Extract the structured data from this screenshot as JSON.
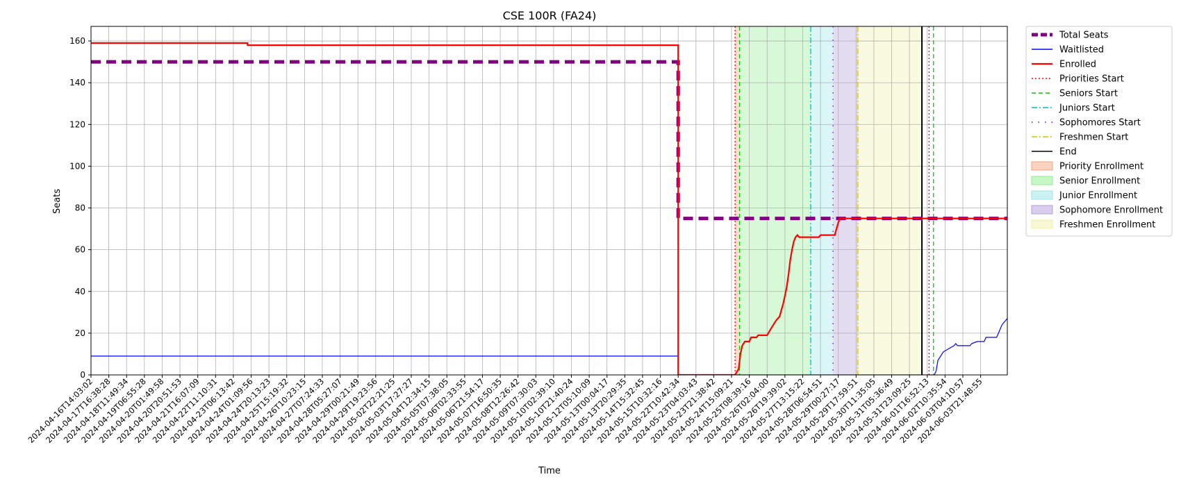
{
  "chart_data": {
    "type": "line",
    "title": "CSE 100R (FA24)",
    "xlabel": "Time",
    "ylabel": "Seats",
    "ylim": [
      0,
      167
    ],
    "y_ticks": [
      0,
      20,
      40,
      60,
      80,
      100,
      120,
      140,
      160
    ],
    "grid": true,
    "legend_position": "outside-right",
    "x_tick_labels": [
      "2024-04-16T14:03:02",
      "2024-04-17T16:38:28",
      "2024-04-18T11:49:34",
      "2024-04-19T06:55:28",
      "2024-04-20T01:49:58",
      "2024-04-20T20:51:53",
      "2024-04-21T16:07:09",
      "2024-04-22T11:10:31",
      "2024-04-23T06:13:42",
      "2024-04-24T01:09:56",
      "2024-04-24T20:13:23",
      "2024-04-25T15:19:32",
      "2024-04-26T10:23:15",
      "2024-04-27T07:24:33",
      "2024-04-28T05:27:07",
      "2024-04-29T00:21:49",
      "2024-04-29T19:23:56",
      "2024-05-02T22:21:25",
      "2024-05-03T17:27:27",
      "2024-05-04T12:34:15",
      "2024-05-05T07:38:05",
      "2024-05-06T02:33:55",
      "2024-05-06T21:54:17",
      "2024-05-07T16:50:35",
      "2024-05-08T12:26:42",
      "2024-05-09T07:30:03",
      "2024-05-10T02:39:10",
      "2024-05-10T21:40:24",
      "2024-05-12T05:10:09",
      "2024-05-13T00:04:17",
      "2024-05-13T20:29:35",
      "2024-05-14T15:32:45",
      "2024-05-15T10:32:16",
      "2024-05-22T10:42:34",
      "2024-05-23T04:03:43",
      "2024-05-23T21:38:42",
      "2024-05-24T15:09:21",
      "2024-05-25T08:39:16",
      "2024-05-26T02:04:00",
      "2024-05-26T19:39:02",
      "2024-05-27T13:15:22",
      "2024-05-28T06:54:51",
      "2024-05-29T00:27:17",
      "2024-05-29T17:59:51",
      "2024-05-30T11:35:05",
      "2024-05-31T05:36:49",
      "2024-05-31T23:09:25",
      "2024-06-01T16:52:13",
      "2024-06-02T10:35:54",
      "2024-06-03T04:10:57",
      "2024-06-03T21:48:55"
    ],
    "x_range": [
      0,
      51.5
    ],
    "series": [
      {
        "name": "Total Seats",
        "color": "#800080",
        "style": "dashed",
        "points": [
          [
            0,
            150
          ],
          [
            33,
            150
          ],
          [
            33,
            75
          ],
          [
            51.5,
            75
          ]
        ]
      },
      {
        "name": "Waitlisted",
        "color": "#0000ff",
        "style": "solid",
        "points": [
          [
            0,
            9
          ],
          [
            33,
            9
          ],
          [
            33,
            0
          ],
          [
            47.4,
            0
          ],
          [
            47.5,
            2
          ],
          [
            47.6,
            7
          ],
          [
            47.75,
            9
          ],
          [
            47.9,
            11
          ],
          [
            48.1,
            12
          ],
          [
            48.3,
            13
          ],
          [
            48.5,
            14
          ],
          [
            48.6,
            15
          ],
          [
            48.7,
            14
          ],
          [
            49.4,
            14
          ],
          [
            49.5,
            15
          ],
          [
            49.8,
            16
          ],
          [
            50.2,
            16
          ],
          [
            50.3,
            18
          ],
          [
            50.9,
            18
          ],
          [
            51.0,
            20
          ],
          [
            51.2,
            24
          ],
          [
            51.4,
            26
          ],
          [
            51.6,
            28
          ],
          [
            51.8,
            29
          ],
          [
            52.2,
            29
          ],
          [
            52.4,
            31
          ],
          [
            52.5,
            33
          ]
        ]
      },
      {
        "name": "Enrolled",
        "color": "#ff0000",
        "style": "solid",
        "points": [
          [
            0,
            159
          ],
          [
            8.8,
            159
          ],
          [
            8.8,
            158
          ],
          [
            33,
            158
          ],
          [
            33,
            0
          ],
          [
            36.2,
            0
          ],
          [
            36.4,
            3
          ],
          [
            36.5,
            10
          ],
          [
            36.6,
            14
          ],
          [
            36.75,
            16
          ],
          [
            37.0,
            16
          ],
          [
            37.1,
            18
          ],
          [
            37.4,
            18
          ],
          [
            37.5,
            19
          ],
          [
            38.0,
            19
          ],
          [
            38.2,
            22
          ],
          [
            38.5,
            26
          ],
          [
            38.7,
            28
          ],
          [
            38.8,
            31
          ],
          [
            38.9,
            34
          ],
          [
            39.0,
            38
          ],
          [
            39.1,
            42
          ],
          [
            39.2,
            48
          ],
          [
            39.3,
            55
          ],
          [
            39.4,
            60
          ],
          [
            39.5,
            64
          ],
          [
            39.6,
            66
          ],
          [
            39.7,
            67
          ],
          [
            39.8,
            66
          ],
          [
            40.1,
            66
          ],
          [
            40.9,
            66
          ],
          [
            41.0,
            67
          ],
          [
            41.8,
            67
          ],
          [
            41.9,
            70
          ],
          [
            42.0,
            73
          ],
          [
            42.1,
            75
          ],
          [
            51.5,
            75
          ]
        ]
      }
    ],
    "enrollment_periods": [
      {
        "name": "Priority Enrollment",
        "start": 36.2,
        "end": 36.45,
        "color": "#f4a582",
        "line_name": "Priorities Start",
        "line_color": "#ff0000",
        "line_style": "dotted"
      },
      {
        "name": "Senior Enrollment",
        "start": 36.45,
        "end": 40.45,
        "color": "#90ee90",
        "line_name": "Seniors Start",
        "line_color": "#00cc00",
        "line_style": "dashed"
      },
      {
        "name": "Junior Enrollment",
        "start": 40.45,
        "end": 41.7,
        "color": "#98e6e6",
        "line_name": "Juniors Start",
        "line_color": "#00bfbf",
        "line_style": "dashdot"
      },
      {
        "name": "Sophomore Enrollment",
        "start": 41.7,
        "end": 43.1,
        "color": "#b39ddb",
        "line_name": "Sophomores Start",
        "line_color": "#6600cc",
        "line_style": "loose"
      },
      {
        "name": "Freshmen Enrollment",
        "start": 43.1,
        "end": 46.7,
        "color": "#f0f0a8",
        "line_name": "Freshmen Start",
        "line_color": "#d4c000",
        "line_style": "dashdot"
      }
    ],
    "extra_markers": [
      {
        "x": 47.1,
        "color": "#ff0000",
        "style": "dotted"
      },
      {
        "x": 47.35,
        "color": "#00cc00",
        "style": "dashed"
      }
    ],
    "end_marker": {
      "name": "End",
      "x": 46.7,
      "color": "#000000"
    },
    "legend": [
      {
        "label": "Total Seats",
        "kind": "line",
        "color": "#800080",
        "style": "dashed-thick"
      },
      {
        "label": "Waitlisted",
        "kind": "line",
        "color": "#0000ff",
        "style": "solid-thin"
      },
      {
        "label": "Enrolled",
        "kind": "line",
        "color": "#ff0000",
        "style": "solid-thick"
      },
      {
        "label": "Priorities Start",
        "kind": "line",
        "color": "#ff0000",
        "style": "dotted"
      },
      {
        "label": "Seniors Start",
        "kind": "line",
        "color": "#00cc00",
        "style": "dashed"
      },
      {
        "label": "Juniors Start",
        "kind": "line",
        "color": "#00bfbf",
        "style": "dashdot"
      },
      {
        "label": "Sophomores Start",
        "kind": "line",
        "color": "#6600cc",
        "style": "loose"
      },
      {
        "label": "Freshmen Start",
        "kind": "line",
        "color": "#d4c000",
        "style": "dashdot"
      },
      {
        "label": "End",
        "kind": "line",
        "color": "#000000",
        "style": "solid"
      },
      {
        "label": "Priority Enrollment",
        "kind": "patch",
        "color": "#f4a582"
      },
      {
        "label": "Senior Enrollment",
        "kind": "patch",
        "color": "#90ee90"
      },
      {
        "label": "Junior Enrollment",
        "kind": "patch",
        "color": "#98e6e6"
      },
      {
        "label": "Sophomore Enrollment",
        "kind": "patch",
        "color": "#b39ddb"
      },
      {
        "label": "Freshmen Enrollment",
        "kind": "patch",
        "color": "#f0f0a8"
      }
    ]
  }
}
